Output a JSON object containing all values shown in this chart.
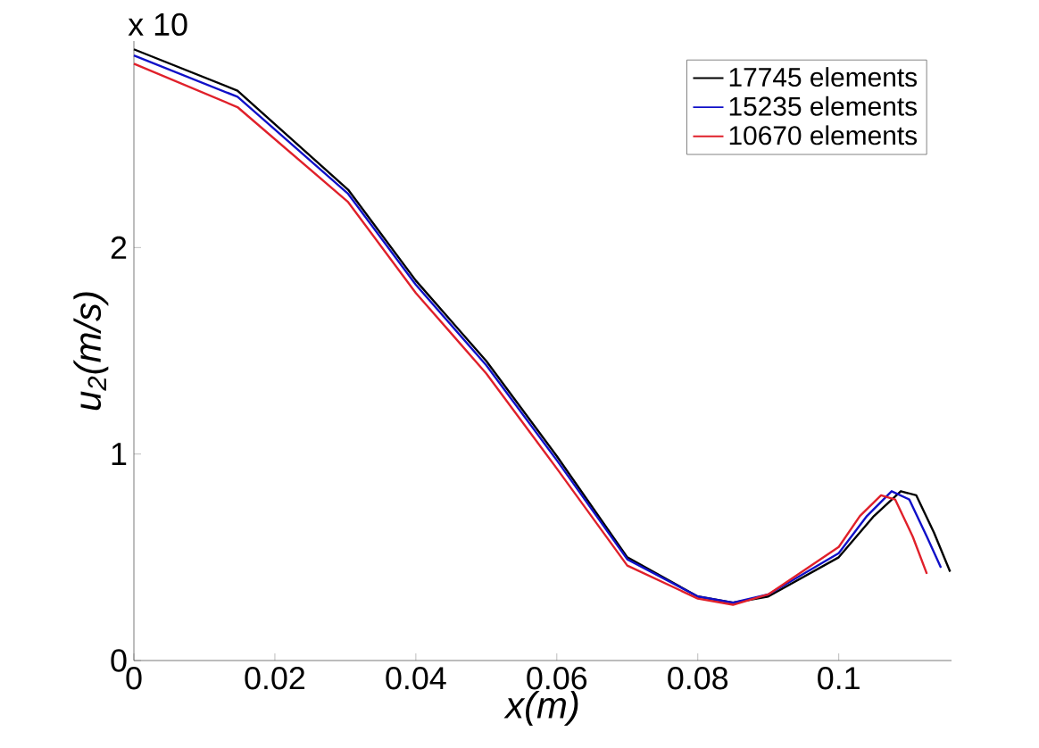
{
  "chart_data": {
    "type": "line",
    "xlabel": "x(m)",
    "ylabel": "u$_{2}$(m/s)",
    "annotations": [
      "x 10"
    ],
    "xlim": [
      0,
      0.116
    ],
    "ylim": [
      0,
      3
    ],
    "xticks": [
      0,
      0.02,
      0.04,
      0.06,
      0.08,
      0.1
    ],
    "yticks": [
      0,
      1,
      2
    ],
    "legend": "top right",
    "grid": false,
    "marker": "none",
    "line_style": "solid",
    "series": [
      {
        "name": "17745 elements",
        "color": "#000000",
        "x": [
          0,
          0.0147,
          0.0304,
          0.04,
          0.05,
          0.06,
          0.07,
          0.08,
          0.085,
          0.09,
          0.1,
          0.105,
          0.1088,
          0.111,
          0.1135,
          0.1158
        ],
        "values": [
          2.96,
          2.76,
          2.28,
          1.84,
          1.45,
          0.99,
          0.5,
          0.31,
          0.28,
          0.31,
          0.5,
          0.7,
          0.82,
          0.8,
          0.62,
          0.43
        ]
      },
      {
        "name": "15235 elements",
        "color": "#1010c8",
        "x": [
          0,
          0.0147,
          0.0304,
          0.04,
          0.05,
          0.06,
          0.07,
          0.08,
          0.085,
          0.09,
          0.1,
          0.104,
          0.1075,
          0.11,
          0.1125,
          0.1145
        ],
        "values": [
          2.93,
          2.73,
          2.26,
          1.82,
          1.43,
          0.97,
          0.49,
          0.31,
          0.28,
          0.32,
          0.52,
          0.7,
          0.82,
          0.78,
          0.6,
          0.45
        ]
      },
      {
        "name": "10670 elements",
        "color": "#e0202a",
        "x": [
          0,
          0.0147,
          0.0304,
          0.04,
          0.05,
          0.06,
          0.07,
          0.08,
          0.085,
          0.09,
          0.1,
          0.103,
          0.106,
          0.108,
          0.1105,
          0.1125
        ],
        "values": [
          2.89,
          2.68,
          2.22,
          1.78,
          1.39,
          0.93,
          0.46,
          0.3,
          0.27,
          0.32,
          0.55,
          0.7,
          0.8,
          0.78,
          0.6,
          0.42
        ]
      }
    ]
  }
}
